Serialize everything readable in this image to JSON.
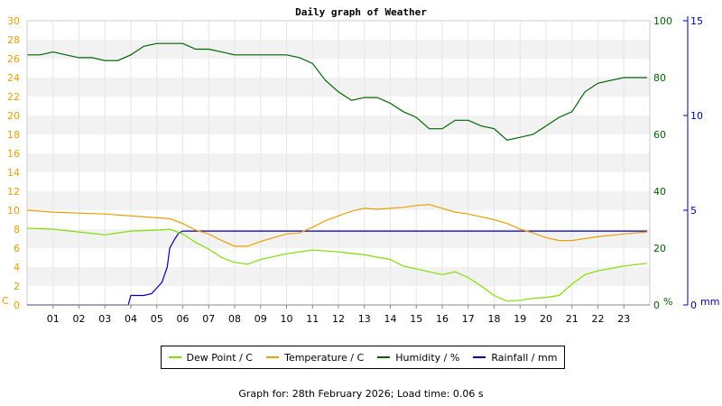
{
  "colors": {
    "dew_point": "#7fe000",
    "temperature": "#e8a000",
    "humidity": "#006400",
    "rainfall": "#0000aa",
    "band": "#f2f2f2",
    "frame": "#cccccc"
  },
  "footer_text": "Graph for: 28th February 2026; Load time: 0.06 s",
  "chart_data": {
    "type": "line",
    "title": "Daily graph of Weather",
    "left_axis": {
      "unit_label": "C",
      "range": [
        0,
        30
      ],
      "ticks": [
        "0",
        "2",
        "4",
        "6",
        "8",
        "10",
        "12",
        "14",
        "16",
        "18",
        "20",
        "22",
        "24",
        "26",
        "28",
        "30"
      ]
    },
    "humidity_axis": {
      "unit_label": "%",
      "range": [
        0,
        100
      ],
      "ticks": [
        "0",
        "20",
        "40",
        "60",
        "80",
        "100"
      ]
    },
    "rain_axis": {
      "unit_label": "mm",
      "range": [
        0,
        15
      ],
      "ticks": [
        "0",
        "5",
        "10",
        "15"
      ]
    },
    "x_axis": {
      "range": [
        0,
        24
      ],
      "ticks": [
        "01",
        "02",
        "03",
        "04",
        "05",
        "06",
        "07",
        "08",
        "09",
        "10",
        "11",
        "12",
        "13",
        "14",
        "15",
        "16",
        "17",
        "18",
        "19",
        "20",
        "21",
        "22",
        "23"
      ]
    },
    "grid": "alternating horizontal bands",
    "legend_placement": "bottom",
    "series": [
      {
        "name": "Dew Point / C",
        "axis": "left",
        "color_key": "dew_point",
        "x": [
          0,
          1,
          2,
          3,
          4,
          5,
          5.5,
          6,
          6.5,
          7,
          7.5,
          8,
          8.5,
          9,
          10,
          11,
          12,
          13,
          14,
          14.5,
          15,
          15.5,
          16,
          16.5,
          17,
          17.5,
          18,
          18.5,
          19,
          19.5,
          20,
          20.5,
          21,
          21.5,
          22,
          23,
          23.9
        ],
        "values": [
          8.1,
          8.0,
          7.7,
          7.4,
          7.8,
          7.9,
          8.0,
          7.5,
          6.6,
          5.9,
          5.0,
          4.5,
          4.3,
          4.8,
          5.4,
          5.8,
          5.6,
          5.3,
          4.8,
          4.1,
          3.8,
          3.5,
          3.2,
          3.5,
          2.9,
          2.0,
          1.0,
          0.4,
          0.5,
          0.7,
          0.8,
          1.0,
          2.2,
          3.2,
          3.6,
          4.1,
          4.4
        ]
      },
      {
        "name": "Temperature / C",
        "axis": "left",
        "color_key": "temperature",
        "x": [
          0,
          1,
          2,
          3,
          4,
          5,
          5.5,
          6,
          6.5,
          7,
          7.5,
          8,
          8.5,
          9,
          9.5,
          10,
          10.5,
          11,
          11.5,
          12,
          12.5,
          13,
          13.5,
          14,
          14.5,
          15,
          15.5,
          16,
          16.5,
          17,
          17.5,
          18,
          18.5,
          19,
          19.5,
          20,
          20.5,
          21,
          21.5,
          22,
          23,
          23.9
        ],
        "values": [
          10.0,
          9.8,
          9.7,
          9.6,
          9.4,
          9.2,
          9.1,
          8.6,
          7.9,
          7.5,
          6.8,
          6.2,
          6.2,
          6.7,
          7.1,
          7.5,
          7.6,
          8.2,
          8.9,
          9.4,
          9.9,
          10.2,
          10.1,
          10.2,
          10.3,
          10.5,
          10.6,
          10.2,
          9.8,
          9.6,
          9.3,
          9.0,
          8.6,
          8.0,
          7.6,
          7.1,
          6.8,
          6.8,
          7.0,
          7.2,
          7.5,
          7.7
        ]
      },
      {
        "name": "Humidity / %",
        "axis": "humidity",
        "color_key": "humidity",
        "x": [
          0,
          0.5,
          1,
          1.5,
          2,
          2.5,
          3,
          3.5,
          4,
          4.5,
          5,
          5.5,
          6,
          6.5,
          7,
          7.5,
          8,
          8.5,
          9,
          9.5,
          10,
          10.5,
          11,
          11.5,
          12,
          12.5,
          13,
          13.5,
          14,
          14.5,
          15,
          15.5,
          16,
          16.5,
          17,
          17.5,
          18,
          18.5,
          19,
          19.5,
          20,
          20.5,
          21,
          21.5,
          22,
          22.5,
          23,
          23.5,
          23.9
        ],
        "values": [
          88,
          88,
          89,
          88,
          87,
          87,
          86,
          86,
          88,
          91,
          92,
          92,
          92,
          90,
          90,
          89,
          88,
          88,
          88,
          88,
          88,
          87,
          85,
          79,
          75,
          72,
          73,
          73,
          71,
          68,
          66,
          62,
          62,
          65,
          65,
          63,
          62,
          58,
          59,
          60,
          63,
          66,
          68,
          75,
          78,
          79,
          80,
          80,
          80
        ]
      },
      {
        "name": "Rainfall / mm",
        "axis": "rain",
        "color_key": "rainfall",
        "x": [
          0,
          1,
          2,
          3,
          3.9,
          4.0,
          4.5,
          4.8,
          5.0,
          5.2,
          5.4,
          5.5,
          5.7,
          5.85,
          6,
          7,
          8,
          10,
          12,
          14,
          16,
          18,
          20,
          22,
          23.9
        ],
        "values": [
          0,
          0,
          0,
          0,
          0,
          0.5,
          0.5,
          0.6,
          0.9,
          1.2,
          2.0,
          3.0,
          3.5,
          3.8,
          3.9,
          3.9,
          3.9,
          3.9,
          3.9,
          3.9,
          3.9,
          3.9,
          3.9,
          3.9,
          3.9
        ]
      }
    ]
  }
}
